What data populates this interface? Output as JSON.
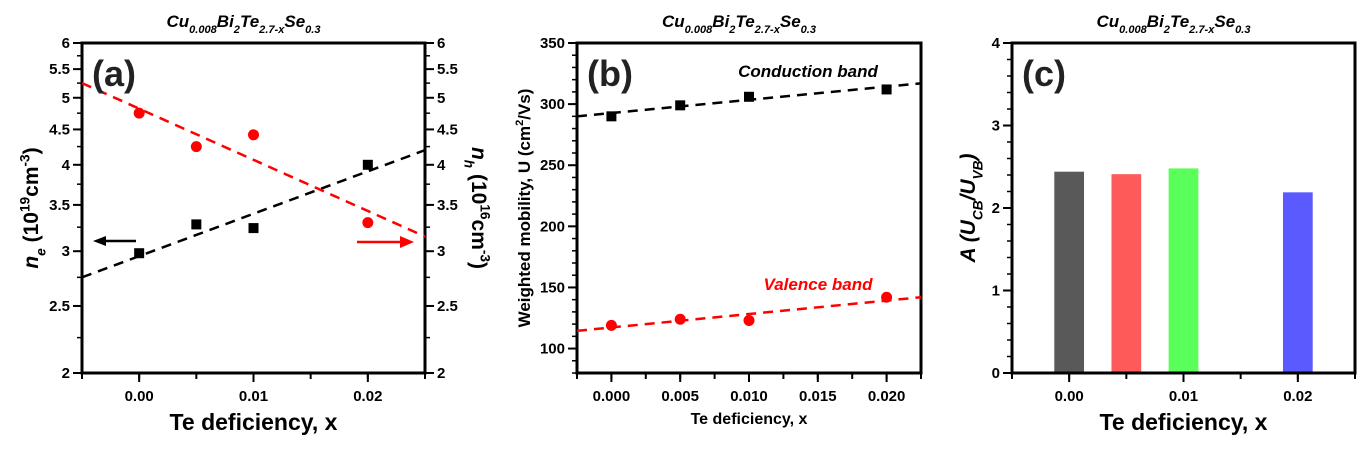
{
  "chart_data": [
    {
      "type": "scatter",
      "panel_label": "(a)",
      "title": [
        {
          "t": "Cu"
        },
        {
          "t": "0.008",
          "s": "sub"
        },
        {
          "t": "Bi"
        },
        {
          "t": "2",
          "s": "sub"
        },
        {
          "t": "Te"
        },
        {
          "t": "2.7-x",
          "s": "sub"
        },
        {
          "t": "Se"
        },
        {
          "t": "0.3",
          "s": "sub"
        }
      ],
      "xlabel": [
        {
          "t": "Te deficiency, x"
        }
      ],
      "ylabel": [
        {
          "t": "n",
          "i": true
        },
        {
          "t": "e",
          "s": "sub",
          "i": true
        },
        {
          "t": " (10"
        },
        {
          "t": "19",
          "s": "sup"
        },
        {
          "t": "cm"
        },
        {
          "t": "-3",
          "s": "sup"
        },
        {
          "t": ")"
        }
      ],
      "ylabel_right": [
        {
          "t": "n",
          "i": true
        },
        {
          "t": "h",
          "s": "sub",
          "i": true
        },
        {
          "t": " (10"
        },
        {
          "t": "16",
          "s": "sup"
        },
        {
          "t": "cm"
        },
        {
          "t": "-3",
          "s": "sup"
        },
        {
          "t": ")"
        }
      ],
      "xlim": [
        -0.005,
        0.025
      ],
      "ylim": [
        2,
        6
      ],
      "yscale": "log",
      "xticks": [
        0,
        0.01,
        0.02
      ],
      "xtick_labels": [
        "0.00",
        "0.01",
        "0.02"
      ],
      "yticks": [
        2,
        2.5,
        3,
        3.5,
        4,
        4.5,
        5,
        5.5,
        6
      ],
      "ytick_labels": [
        "2",
        "2.5",
        "3",
        "3.5",
        "4",
        "4.5",
        "5",
        "5.5",
        "6"
      ],
      "series": [
        {
          "name": "n_e (left axis)",
          "color": "#000000",
          "marker": "square",
          "x": [
            0,
            0.005,
            0.01,
            0.02
          ],
          "y": [
            2.98,
            3.28,
            3.24,
            4.0
          ],
          "fit": [
            [
              -0.005,
              2.75
            ],
            [
              0.025,
              4.2
            ]
          ]
        },
        {
          "name": "n_h (right axis)",
          "color": "#ff0000",
          "marker": "circle",
          "x": [
            0,
            0.005,
            0.01,
            0.02
          ],
          "y": [
            4.75,
            4.25,
            4.42,
            3.3
          ],
          "fit": [
            [
              -0.005,
              5.25
            ],
            [
              0.025,
              3.15
            ]
          ]
        }
      ],
      "annotations": [
        "arrow-left (black) to left axis",
        "arrow-right (red) to right axis"
      ]
    },
    {
      "type": "scatter",
      "panel_label": "(b)",
      "title": [
        {
          "t": "Cu"
        },
        {
          "t": "0.008",
          "s": "sub"
        },
        {
          "t": "Bi"
        },
        {
          "t": "2",
          "s": "sub"
        },
        {
          "t": "Te"
        },
        {
          "t": "2.7-x",
          "s": "sub"
        },
        {
          "t": "Se"
        },
        {
          "t": "0.3",
          "s": "sub"
        }
      ],
      "xlabel": [
        {
          "t": "Te deficiency, x"
        }
      ],
      "ylabel": [
        {
          "t": "Weighted mobility, U (cm"
        },
        {
          "t": "2",
          "s": "sup"
        },
        {
          "t": "/Vs)"
        }
      ],
      "xlim": [
        -0.0025,
        0.0225
      ],
      "ylim": [
        80,
        350
      ],
      "xticks": [
        0,
        0.005,
        0.01,
        0.015,
        0.02
      ],
      "xtick_labels": [
        "0.000",
        "0.005",
        "0.010",
        "0.015",
        "0.020"
      ],
      "yticks": [
        100,
        150,
        200,
        250,
        300,
        350
      ],
      "ytick_labels": [
        "100",
        "150",
        "200",
        "250",
        "300",
        "350"
      ],
      "series": [
        {
          "name": "Conduction band",
          "color": "#000000",
          "marker": "square",
          "x": [
            0,
            0.005,
            0.01,
            0.02
          ],
          "y": [
            290,
            299,
            306,
            312
          ],
          "fit": [
            [
              -0.0025,
              290
            ],
            [
              0.0225,
              317
            ]
          ]
        },
        {
          "name": "Valence band",
          "color": "#ff0000",
          "marker": "circle",
          "x": [
            0,
            0.005,
            0.01,
            0.02
          ],
          "y": [
            119,
            124,
            123,
            142
          ],
          "fit": [
            [
              -0.0025,
              114.5
            ],
            [
              0.0225,
              142
            ]
          ]
        }
      ]
    },
    {
      "type": "bar",
      "panel_label": "(c)",
      "title": [
        {
          "t": "Cu"
        },
        {
          "t": "0.008",
          "s": "sub"
        },
        {
          "t": "Bi"
        },
        {
          "t": "2",
          "s": "sub"
        },
        {
          "t": "Te"
        },
        {
          "t": "2.7-x",
          "s": "sub"
        },
        {
          "t": "Se"
        },
        {
          "t": "0.3",
          "s": "sub"
        }
      ],
      "xlabel": [
        {
          "t": "Te deficiency, x"
        }
      ],
      "ylabel": [
        {
          "t": "A (U",
          "i": true
        },
        {
          "t": "CB",
          "s": "sub",
          "i": true
        },
        {
          "t": "/U",
          "i": true
        },
        {
          "t": "VB",
          "s": "sub",
          "i": true
        },
        {
          "t": ")",
          "i": true
        }
      ],
      "xlim": [
        -0.005,
        0.025
      ],
      "ylim": [
        0,
        4
      ],
      "xticks": [
        0,
        0.01,
        0.02
      ],
      "xtick_labels": [
        "0.00",
        "0.01",
        "0.02"
      ],
      "yticks": [
        0,
        1,
        2,
        3,
        4
      ],
      "ytick_labels": [
        "0",
        "1",
        "2",
        "3",
        "4"
      ],
      "x": [
        0,
        0.005,
        0.01,
        0.02
      ],
      "values": [
        2.44,
        2.41,
        2.48,
        2.19
      ],
      "colors": [
        "#595959",
        "#ff5a5a",
        "#5aff5a",
        "#5a5aff"
      ]
    }
  ]
}
